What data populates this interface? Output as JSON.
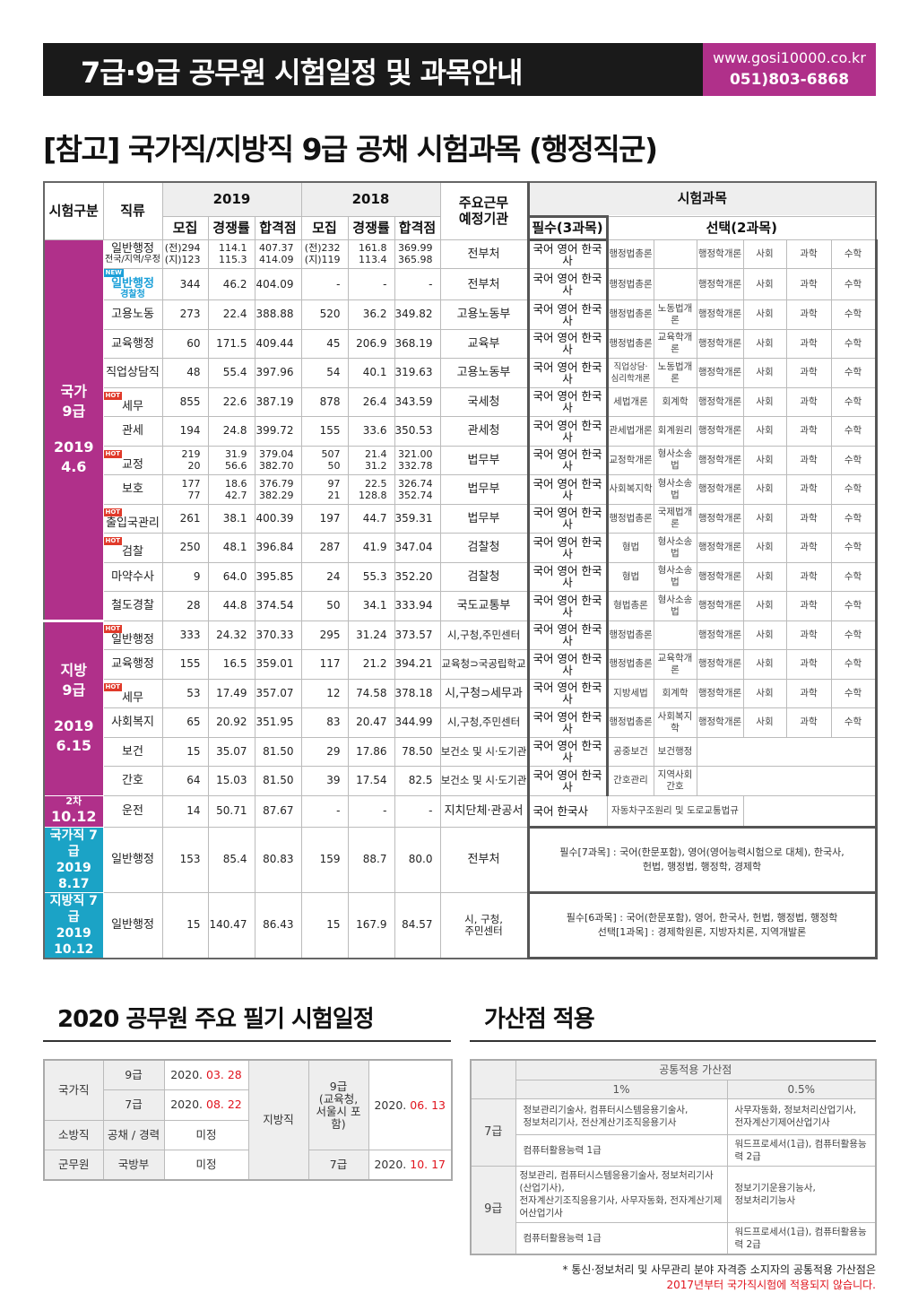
{
  "header": {
    "title": "7급·9급 공무원 시험일정 및 과목안내",
    "website": "www.gosi10000.co.kr",
    "phone": "051)803-6868",
    "brand_color": "#b0308a"
  },
  "subtitle": "[참고] 국가직/지방직 9급 공채 시험과목 (행정직군)",
  "main_table": {
    "headers": {
      "category": "시험구분",
      "job": "직류",
      "y2019": "2019",
      "y2018": "2018",
      "recruit": "모집",
      "competition": "경쟁률",
      "passing": "합격점",
      "agency": "주요근무\n예정기관",
      "subjects": "시험과목",
      "required": "필수(3과목)",
      "optional": "선택(2과목)"
    },
    "groups": [
      {
        "label": "국가\n9급",
        "date": "2019\n4.6",
        "color": "#b0308a"
      },
      {
        "label": "지방\n9급",
        "date": "2019\n6.15",
        "color": "#b0308a"
      },
      {
        "label": "2차",
        "date": "10.12",
        "color": "#b0308a"
      },
      {
        "label": "국가직 7급",
        "date": "2019\n8.17",
        "color": "#1ba3c6"
      },
      {
        "label": "지방직 7급",
        "date": "2019\n10.12",
        "color": "#1ba3c6"
      }
    ],
    "rows": [
      {
        "group": 0,
        "job": "일반행정",
        "sub": "전국/지역/우정",
        "r2019": [
          "(전)294\n(지)123",
          "114.1\n115.3",
          "407.37\n414.09"
        ],
        "r2018": [
          "(전)232\n(지)119",
          "161.8\n113.4",
          "369.99\n365.98"
        ],
        "agency": "전부처",
        "required": "국어 영어 한국사",
        "options": [
          "행정법총론",
          "",
          "행정학개론",
          "사회",
          "과학",
          "수학"
        ]
      },
      {
        "group": 0,
        "job": "일반행정",
        "sub": "경찰청",
        "badge": "NEW",
        "highlight": true,
        "r2019": [
          "344",
          "46.2",
          "404.09"
        ],
        "r2018": [
          "-",
          "-",
          "-"
        ],
        "agency": "전부처",
        "required": "국어 영어 한국사",
        "options": [
          "행정법총론",
          "",
          "행정학개론",
          "사회",
          "과학",
          "수학"
        ]
      },
      {
        "group": 0,
        "job": "고용노동",
        "r2019": [
          "273",
          "22.4",
          "388.88"
        ],
        "r2018": [
          "520",
          "36.2",
          "349.82"
        ],
        "agency": "고용노동부",
        "required": "국어 영어 한국사",
        "options": [
          "행정법총론",
          "노동법개론",
          "행정학개론",
          "사회",
          "과학",
          "수학"
        ]
      },
      {
        "group": 0,
        "job": "교육행정",
        "r2019": [
          "60",
          "171.5",
          "409.44"
        ],
        "r2018": [
          "45",
          "206.9",
          "368.19"
        ],
        "agency": "교육부",
        "required": "국어 영어 한국사",
        "options": [
          "행정법총론",
          "교육학개론",
          "행정학개론",
          "사회",
          "과학",
          "수학"
        ]
      },
      {
        "group": 0,
        "job": "직업상담직",
        "r2019": [
          "48",
          "55.4",
          "397.96"
        ],
        "r2018": [
          "54",
          "40.1",
          "319.63"
        ],
        "agency": "고용노동부",
        "required": "국어 영어 한국사",
        "options": [
          "직업상담·\n심리학개론",
          "노동법개론",
          "행정학개론",
          "사회",
          "과학",
          "수학"
        ]
      },
      {
        "group": 0,
        "job": "세무",
        "badge": "HOT",
        "r2019": [
          "855",
          "22.6",
          "387.19"
        ],
        "r2018": [
          "878",
          "26.4",
          "343.59"
        ],
        "agency": "국세청",
        "required": "국어 영어 한국사",
        "options": [
          "세법개론",
          "회계학",
          "행정학개론",
          "사회",
          "과학",
          "수학"
        ]
      },
      {
        "group": 0,
        "job": "관세",
        "r2019": [
          "194",
          "24.8",
          "399.72"
        ],
        "r2018": [
          "155",
          "33.6",
          "350.53"
        ],
        "agency": "관세청",
        "required": "국어 영어 한국사",
        "options": [
          "관세법개론",
          "회계원리",
          "행정학개론",
          "사회",
          "과학",
          "수학"
        ]
      },
      {
        "group": 0,
        "job": "교정",
        "badge": "HOT",
        "r2019": [
          "219\n20",
          "31.9\n56.6",
          "379.04\n382.70"
        ],
        "r2018": [
          "507\n50",
          "21.4\n31.2",
          "321.00\n332.78"
        ],
        "agency": "법무부",
        "required": "국어 영어 한국사",
        "options": [
          "교정학개론",
          "형사소송법",
          "행정학개론",
          "사회",
          "과학",
          "수학"
        ]
      },
      {
        "group": 0,
        "job": "보호",
        "r2019": [
          "177\n77",
          "18.6\n42.7",
          "376.79\n382.29"
        ],
        "r2018": [
          "97\n21",
          "22.5\n128.8",
          "326.74\n352.74"
        ],
        "agency": "법무부",
        "required": "국어 영어 한국사",
        "options": [
          "사회복지학",
          "형사소송법",
          "행정학개론",
          "사회",
          "과학",
          "수학"
        ]
      },
      {
        "group": 0,
        "job": "출입국관리",
        "badge": "HOT",
        "r2019": [
          "261",
          "38.1",
          "400.39"
        ],
        "r2018": [
          "197",
          "44.7",
          "359.31"
        ],
        "agency": "법무부",
        "required": "국어 영어 한국사",
        "options": [
          "행정법총론",
          "국제법개론",
          "행정학개론",
          "사회",
          "과학",
          "수학"
        ]
      },
      {
        "group": 0,
        "job": "검찰",
        "badge": "HOT",
        "r2019": [
          "250",
          "48.1",
          "396.84"
        ],
        "r2018": [
          "287",
          "41.9",
          "347.04"
        ],
        "agency": "검찰청",
        "required": "국어 영어 한국사",
        "options": [
          "형법",
          "형사소송법",
          "행정학개론",
          "사회",
          "과학",
          "수학"
        ]
      },
      {
        "group": 0,
        "job": "마약수사",
        "r2019": [
          "9",
          "64.0",
          "395.85"
        ],
        "r2018": [
          "24",
          "55.3",
          "352.20"
        ],
        "agency": "검찰청",
        "required": "국어 영어 한국사",
        "options": [
          "형법",
          "형사소송법",
          "행정학개론",
          "사회",
          "과학",
          "수학"
        ]
      },
      {
        "group": 0,
        "job": "철도경찰",
        "r2019": [
          "28",
          "44.8",
          "374.54"
        ],
        "r2018": [
          "50",
          "34.1",
          "333.94"
        ],
        "agency": "국도교통부",
        "required": "국어 영어 한국사",
        "options": [
          "형법총론",
          "형사소송법",
          "행정학개론",
          "사회",
          "과학",
          "수학"
        ]
      },
      {
        "group": 1,
        "job": "일반행정",
        "badge": "HOT",
        "r2019": [
          "333",
          "24.32",
          "370.33"
        ],
        "r2018": [
          "295",
          "31.24",
          "373.57"
        ],
        "agency": "시,구청,주민센터",
        "required": "국어 영어 한국사",
        "options": [
          "행정법총론",
          "",
          "행정학개론",
          "사회",
          "과학",
          "수학"
        ]
      },
      {
        "group": 1,
        "job": "교육행정",
        "r2019": [
          "155",
          "16.5",
          "359.01"
        ],
        "r2018": [
          "117",
          "21.2",
          "394.21"
        ],
        "agency": "교육청⊃국공립학교",
        "required": "국어 영어 한국사",
        "options": [
          "행정법총론",
          "교육학개론",
          "행정학개론",
          "사회",
          "과학",
          "수학"
        ]
      },
      {
        "group": 1,
        "job": "세무",
        "badge": "HOT",
        "r2019": [
          "53",
          "17.49",
          "357.07"
        ],
        "r2018": [
          "12",
          "74.58",
          "378.18"
        ],
        "agency": "시,구청⊃세무과",
        "required": "국어 영어 한국사",
        "options": [
          "지방세법",
          "회계학",
          "행정학개론",
          "사회",
          "과학",
          "수학"
        ]
      },
      {
        "group": 1,
        "job": "사회복지",
        "r2019": [
          "65",
          "20.92",
          "351.95"
        ],
        "r2018": [
          "83",
          "20.47",
          "344.99"
        ],
        "agency": "시,구청,주민센터",
        "required": "국어 영어 한국사",
        "options": [
          "행정법총론",
          "사회복지학",
          "행정학개론",
          "사회",
          "과학",
          "수학"
        ]
      },
      {
        "group": 1,
        "job": "보건",
        "r2019": [
          "15",
          "35.07",
          "81.50"
        ],
        "r2018": [
          "29",
          "17.86",
          "78.50"
        ],
        "agency": "보건소 및 시·도기관",
        "required": "국어 영어 한국사",
        "options": [
          "공중보건",
          "보건행정"
        ]
      },
      {
        "group": 1,
        "job": "간호",
        "r2019": [
          "64",
          "15.03",
          "81.50"
        ],
        "r2018": [
          "39",
          "17.54",
          "82.5"
        ],
        "agency": "보건소 및 시·도기관",
        "required": "국어 영어 한국사",
        "options": [
          "간호관리",
          "지역사회간호"
        ]
      },
      {
        "group": 2,
        "job": "운전",
        "r2019": [
          "14",
          "50.71",
          "87.67"
        ],
        "r2018": [
          "-",
          "-",
          "-"
        ],
        "agency": "지치단체·관공서",
        "required": "국어      한국사",
        "wide_option": "자동차구조원리 및 도로교통법규"
      },
      {
        "group": 3,
        "job": "일반행정",
        "r2019": [
          "153",
          "85.4",
          "80.83"
        ],
        "r2018": [
          "159",
          "88.7",
          "80.0"
        ],
        "agency": "전부처",
        "note": "필수[7과목] : 국어(한문포함), 영어(영어능력시험으로 대체), 한국사,\n헌법, 행정법, 행정학, 경제학"
      },
      {
        "group": 4,
        "job": "일반행정",
        "r2019": [
          "15",
          "140.47",
          "86.43"
        ],
        "r2018": [
          "15",
          "167.9",
          "84.57"
        ],
        "agency": "시, 구청,\n주민센터",
        "note": "필수[6과목] : 국어(한문포함), 영어, 한국사, 헌법, 행정법, 행정학\n선택[1과목] : 경제학원론, 지방자치론, 지역개발론"
      }
    ]
  },
  "schedule": {
    "title": "2020 공무원 주요 필기 시험일정",
    "national": "국가직",
    "n9": "9급",
    "n9_date_prefix": "2020. ",
    "n9_date": "03. 28",
    "n7": "7급",
    "n7_date_prefix": "2020. ",
    "n7_date": "08. 22",
    "fire": "소방직",
    "fire_type": "공채 / 경력",
    "fire_date": "미정",
    "military": "군무원",
    "military_type": "국방부",
    "military_date": "미정",
    "local": "지방직",
    "l9": "9급\n(교육청,\n서울시 포함)",
    "l9_date_prefix": "2020. ",
    "l9_date": "06. 13",
    "l7": "7급",
    "l7_date_prefix": "2020. ",
    "l7_date": "10. 17"
  },
  "bonus": {
    "title": "가산점 적용",
    "header": "공통적용 가산점",
    "col1": "1%",
    "col2": "0.5%",
    "rows": [
      {
        "grade": "7급",
        "a1": "정보관리기술사, 컴퓨터시스템응용기술사,\n정보처리기사, 전산계산기조직응용기사",
        "a2": "사무자동화, 정보처리산업기사,\n전자계산기제어산업기사",
        "b1": "컴퓨터활용능력 1급",
        "b2": "워드프로세서(1급), 컴퓨터활용능력 2급"
      },
      {
        "grade": "9급",
        "a1": "정보관리, 컴퓨터시스템응용기술사, 정보처리기사(산업기사),\n전자계산기조직응용기사, 사무자동화, 전자계산기제어산업기사",
        "a2": "정보기기운용기능사,\n정보처리기능사",
        "b1": "컴퓨터활용능력 1급",
        "b2": "워드프로세서(1급), 컴퓨터활용능력 2급"
      }
    ],
    "footnote1": "* 통신·정보처리 및 사무관리 분야 자격증 소지자의 공통적용 가산점은",
    "footnote2": "2017년부터 국가직시험에 적용되지 않습니다."
  }
}
